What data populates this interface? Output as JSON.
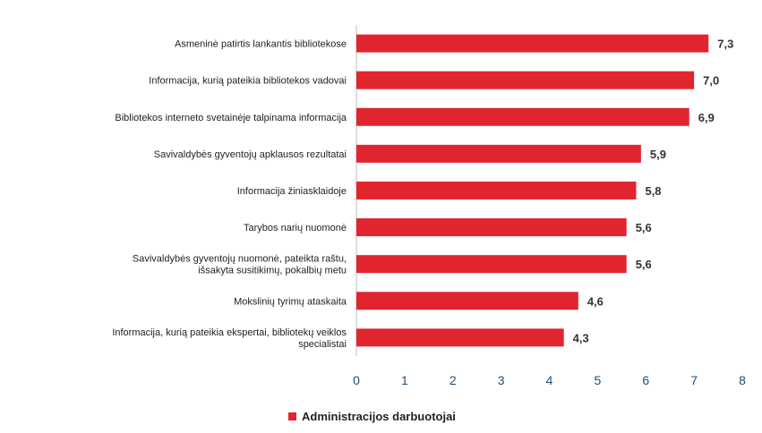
{
  "chart_data": {
    "type": "bar",
    "orientation": "horizontal",
    "categories": [
      "Asmeninė patirtis lankantis bibliotekose",
      "Informacija, kurią pateikia bibliotekos vadovai",
      "Bibliotekos interneto svetainėje talpinama informacija",
      "Savivaldybės gyventojų apklausos rezultatai",
      "Informacija žiniasklaidoje",
      "Tarybos narių nuomonė",
      "Savivaldybės gyventojų nuomonė, pateikta raštu, išsakyta susitikimų, pokalbių metu",
      "Mokslinių tyrimų ataskaita",
      "Informacija, kurią pateikia ekspertai, bibliotekų veiklos specialistai"
    ],
    "series": [
      {
        "name": "Administracijos darbuotojai",
        "values": [
          7.3,
          7.0,
          6.9,
          5.9,
          5.8,
          5.6,
          5.6,
          4.6,
          4.3
        ],
        "value_labels": [
          "7,3",
          "7,0",
          "6,9",
          "5,9",
          "5,8",
          "5,6",
          "5,6",
          "4,6",
          "4,3"
        ],
        "color": "#e0252f"
      }
    ],
    "xlim": [
      0,
      8
    ],
    "xticks": [
      "0",
      "1",
      "2",
      "3",
      "4",
      "5",
      "6",
      "7",
      "8"
    ],
    "grid": false,
    "legend": "bottom"
  }
}
